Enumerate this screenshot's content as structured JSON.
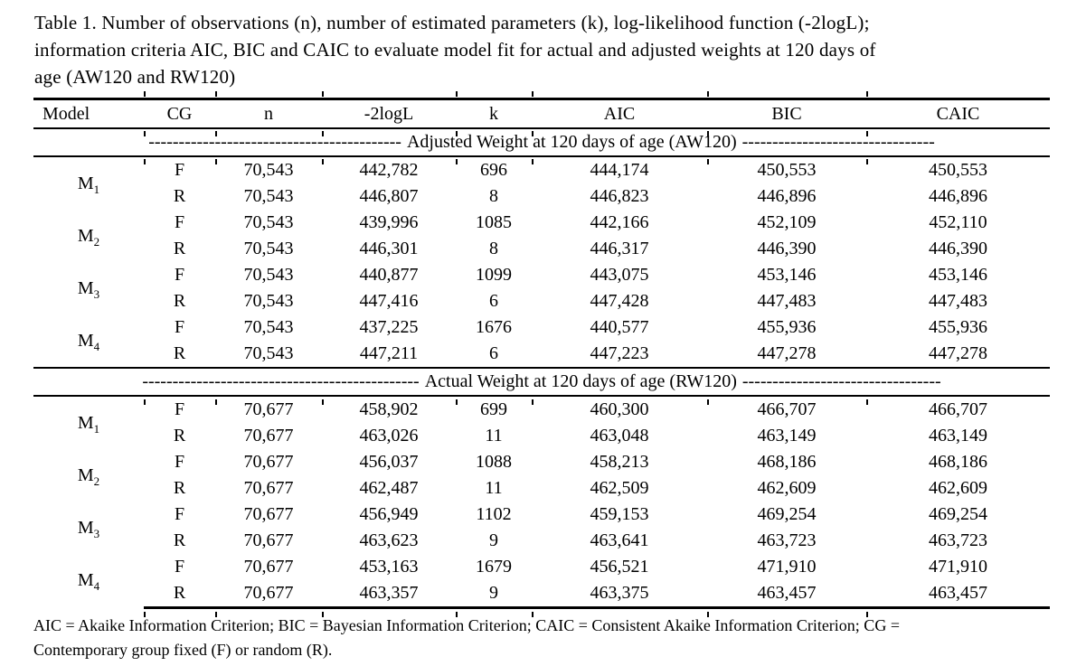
{
  "colors": {
    "text": "#000000",
    "background": "#ffffff"
  },
  "caption": {
    "lines": [
      "Table 1. Number of observations (n), number of estimated parameters (k), log-likelihood function (-2logL);",
      "information criteria AIC, BIC and CAIC to evaluate model fit for actual and adjusted weights at 120 days of",
      "age (AW120 and RW120)"
    ]
  },
  "table": {
    "columns": [
      "Model",
      "CG",
      "n",
      "-2logL",
      "k",
      "AIC",
      "BIC",
      "CAIC"
    ],
    "sections": [
      {
        "dashes_left": "------------------------------------------",
        "label": "Adjusted Weight at 120 days of age (AW120)",
        "dashes_right": "--------------------------------",
        "models": [
          {
            "name": "M",
            "sub": "1",
            "rows": [
              {
                "cg": "F",
                "n": "70,543",
                "logl": "442,782",
                "k": "696",
                "aic": "444,174",
                "bic": "450,553",
                "caic": "450,553"
              },
              {
                "cg": "R",
                "n": "70,543",
                "logl": "446,807",
                "k": "8",
                "aic": "446,823",
                "bic": "446,896",
                "caic": "446,896"
              }
            ]
          },
          {
            "name": "M",
            "sub": "2",
            "rows": [
              {
                "cg": "F",
                "n": "70,543",
                "logl": "439,996",
                "k": "1085",
                "aic": "442,166",
                "bic": "452,109",
                "caic": "452,110"
              },
              {
                "cg": "R",
                "n": "70,543",
                "logl": "446,301",
                "k": "8",
                "aic": "446,317",
                "bic": "446,390",
                "caic": "446,390"
              }
            ]
          },
          {
            "name": "M",
            "sub": "3",
            "rows": [
              {
                "cg": "F",
                "n": "70,543",
                "logl": "440,877",
                "k": "1099",
                "aic": "443,075",
                "bic": "453,146",
                "caic": "453,146"
              },
              {
                "cg": "R",
                "n": "70,543",
                "logl": "447,416",
                "k": "6",
                "aic": "447,428",
                "bic": "447,483",
                "caic": "447,483"
              }
            ]
          },
          {
            "name": "M",
            "sub": "4",
            "rows": [
              {
                "cg": "F",
                "n": "70,543",
                "logl": "437,225",
                "k": "1676",
                "aic": "440,577",
                "bic": "455,936",
                "caic": "455,936"
              },
              {
                "cg": "R",
                "n": "70,543",
                "logl": "447,211",
                "k": "6",
                "aic": "447,223",
                "bic": "447,278",
                "caic": "447,278"
              }
            ]
          }
        ]
      },
      {
        "dashes_left": "----------------------------------------------",
        "label": "Actual Weight at 120 days of age (RW120)",
        "dashes_right": "---------------------------------",
        "models": [
          {
            "name": "M",
            "sub": "1",
            "rows": [
              {
                "cg": "F",
                "n": "70,677",
                "logl": "458,902",
                "k": "699",
                "aic": "460,300",
                "bic": "466,707",
                "caic": "466,707"
              },
              {
                "cg": "R",
                "n": "70,677",
                "logl": "463,026",
                "k": "11",
                "aic": "463,048",
                "bic": "463,149",
                "caic": "463,149"
              }
            ]
          },
          {
            "name": "M",
            "sub": "2",
            "rows": [
              {
                "cg": "F",
                "n": "70,677",
                "logl": "456,037",
                "k": "1088",
                "aic": "458,213",
                "bic": "468,186",
                "caic": "468,186"
              },
              {
                "cg": "R",
                "n": "70,677",
                "logl": "462,487",
                "k": "11",
                "aic": "462,509",
                "bic": "462,609",
                "caic": "462,609"
              }
            ]
          },
          {
            "name": "M",
            "sub": "3",
            "rows": [
              {
                "cg": "F",
                "n": "70,677",
                "logl": "456,949",
                "k": "1102",
                "aic": "459,153",
                "bic": "469,254",
                "caic": "469,254"
              },
              {
                "cg": "R",
                "n": "70,677",
                "logl": "463,623",
                "k": "9",
                "aic": "463,641",
                "bic": "463,723",
                "caic": "463,723"
              }
            ]
          },
          {
            "name": "M",
            "sub": "4",
            "rows": [
              {
                "cg": "F",
                "n": "70,677",
                "logl": "453,163",
                "k": "1679",
                "aic": "456,521",
                "bic": "471,910",
                "caic": "471,910"
              },
              {
                "cg": "R",
                "n": "70,677",
                "logl": "463,357",
                "k": "9",
                "aic": "463,375",
                "bic": "463,457",
                "caic": "463,457"
              }
            ]
          }
        ]
      }
    ]
  },
  "footnote": {
    "lines": [
      "AIC = Akaike Information Criterion; BIC = Bayesian Information Criterion; CAIC = Consistent Akaike Information Criterion; CG =",
      "Contemporary group fixed (F) or random (R)."
    ]
  }
}
